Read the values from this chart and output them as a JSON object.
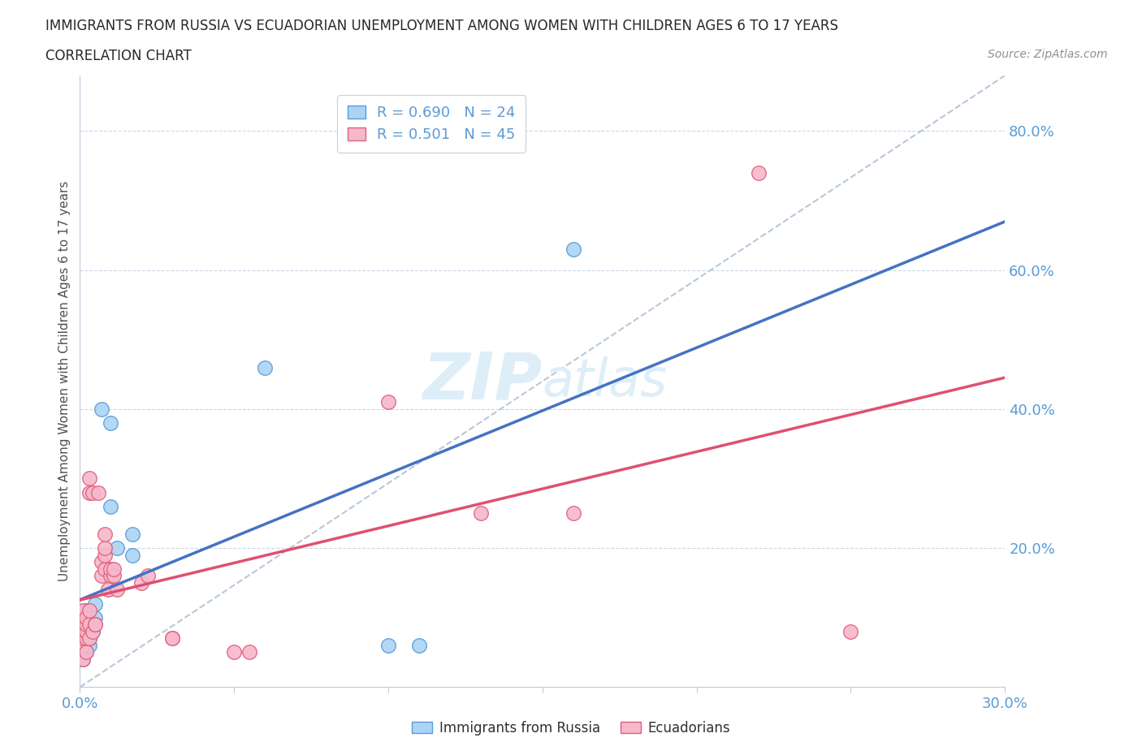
{
  "title": "IMMIGRANTS FROM RUSSIA VS ECUADORIAN UNEMPLOYMENT AMONG WOMEN WITH CHILDREN AGES 6 TO 17 YEARS",
  "subtitle": "CORRELATION CHART",
  "source": "Source: ZipAtlas.com",
  "ylabel_label": "Unemployment Among Women with Children Ages 6 to 17 years",
  "legend_russia": "Immigrants from Russia",
  "legend_ecuador": "Ecuadorians",
  "R_russia": "0.690",
  "N_russia": "24",
  "R_ecuador": "0.501",
  "N_ecuador": "45",
  "russia_color": "#aad4f5",
  "ecuador_color": "#f5b8cc",
  "russia_edge_color": "#5b9bd5",
  "ecuador_edge_color": "#e0607a",
  "russia_line_color": "#4472c4",
  "ecuador_line_color": "#e05070",
  "trendline_gray_color": "#b8c8d8",
  "background_color": "#ffffff",
  "watermark_color": "#ddeef8",
  "tick_color": "#5b9bd5",
  "russia_points": [
    [
      0.001,
      0.04
    ],
    [
      0.001,
      0.06
    ],
    [
      0.001,
      0.08
    ],
    [
      0.001,
      0.1
    ],
    [
      0.002,
      0.05
    ],
    [
      0.002,
      0.08
    ],
    [
      0.002,
      0.09
    ],
    [
      0.002,
      0.11
    ],
    [
      0.003,
      0.06
    ],
    [
      0.003,
      0.07
    ],
    [
      0.003,
      0.09
    ],
    [
      0.004,
      0.08
    ],
    [
      0.005,
      0.1
    ],
    [
      0.005,
      0.12
    ],
    [
      0.007,
      0.4
    ],
    [
      0.01,
      0.38
    ],
    [
      0.01,
      0.26
    ],
    [
      0.012,
      0.2
    ],
    [
      0.017,
      0.19
    ],
    [
      0.017,
      0.22
    ],
    [
      0.06,
      0.46
    ],
    [
      0.1,
      0.06
    ],
    [
      0.11,
      0.06
    ],
    [
      0.16,
      0.63
    ]
  ],
  "ecuador_points": [
    [
      0.001,
      0.04
    ],
    [
      0.001,
      0.06
    ],
    [
      0.001,
      0.07
    ],
    [
      0.001,
      0.08
    ],
    [
      0.001,
      0.09
    ],
    [
      0.001,
      0.1
    ],
    [
      0.001,
      0.11
    ],
    [
      0.002,
      0.05
    ],
    [
      0.002,
      0.07
    ],
    [
      0.002,
      0.08
    ],
    [
      0.002,
      0.09
    ],
    [
      0.002,
      0.1
    ],
    [
      0.003,
      0.07
    ],
    [
      0.003,
      0.09
    ],
    [
      0.003,
      0.11
    ],
    [
      0.003,
      0.28
    ],
    [
      0.003,
      0.3
    ],
    [
      0.004,
      0.08
    ],
    [
      0.004,
      0.28
    ],
    [
      0.005,
      0.09
    ],
    [
      0.005,
      0.09
    ],
    [
      0.006,
      0.28
    ],
    [
      0.007,
      0.16
    ],
    [
      0.007,
      0.18
    ],
    [
      0.008,
      0.17
    ],
    [
      0.008,
      0.19
    ],
    [
      0.008,
      0.2
    ],
    [
      0.008,
      0.22
    ],
    [
      0.009,
      0.14
    ],
    [
      0.01,
      0.16
    ],
    [
      0.01,
      0.17
    ],
    [
      0.011,
      0.16
    ],
    [
      0.011,
      0.17
    ],
    [
      0.012,
      0.14
    ],
    [
      0.02,
      0.15
    ],
    [
      0.022,
      0.16
    ],
    [
      0.03,
      0.07
    ],
    [
      0.03,
      0.07
    ],
    [
      0.05,
      0.05
    ],
    [
      0.055,
      0.05
    ],
    [
      0.1,
      0.41
    ],
    [
      0.13,
      0.25
    ],
    [
      0.16,
      0.25
    ],
    [
      0.22,
      0.74
    ],
    [
      0.25,
      0.08
    ]
  ],
  "xmin": 0.0,
  "xmax": 0.3,
  "ymin": 0.0,
  "ymax": 0.88,
  "yticks": [
    0.2,
    0.4,
    0.6,
    0.8
  ],
  "xtick_show": [
    0.0,
    0.3
  ],
  "figsize": [
    14.06,
    9.3
  ],
  "dpi": 100
}
